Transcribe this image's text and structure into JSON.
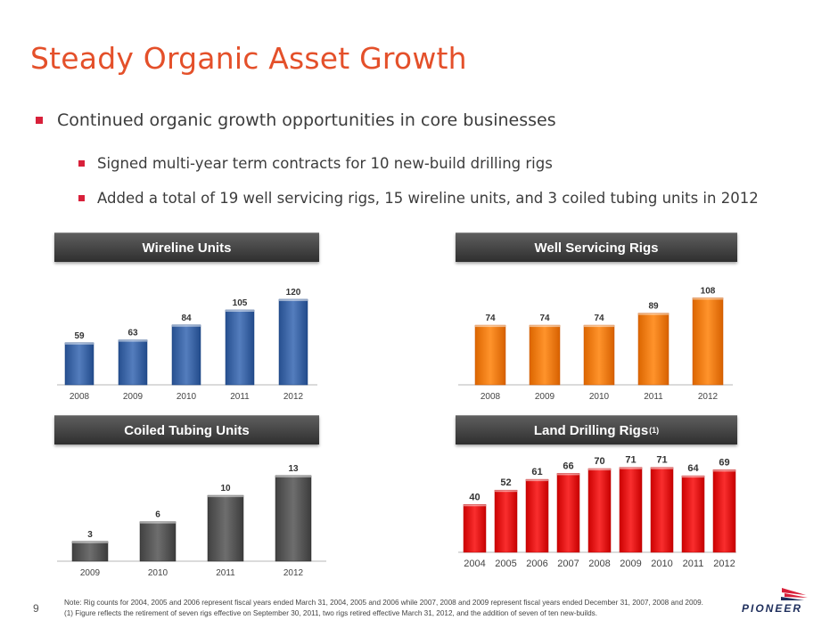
{
  "title": "Steady Organic Asset Growth",
  "bullets": {
    "main": "Continued organic growth opportunities in core businesses",
    "sub": [
      "Signed multi-year term contracts for 10 new-build drilling rigs",
      "Added a total of 19 well servicing rigs, 15 wireline units, and 3 coiled tubing units in 2012"
    ]
  },
  "colors": {
    "title": "#e4502a",
    "wireline": "#3b64a4",
    "well_servicing": "#f07a12",
    "coiled_tubing": "#555555",
    "land_drilling": "#e01515"
  },
  "chart_data": [
    {
      "type": "bar",
      "title": "Wireline Units",
      "categories": [
        "2008",
        "2009",
        "2010",
        "2011",
        "2012"
      ],
      "values": [
        59,
        63,
        84,
        105,
        120
      ],
      "ylim": [
        0,
        130
      ],
      "grid": false
    },
    {
      "type": "bar",
      "title": "Well Servicing Rigs",
      "categories": [
        "2008",
        "2009",
        "2010",
        "2011",
        "2012"
      ],
      "values": [
        74,
        74,
        74,
        89,
        108
      ],
      "ylim": [
        0,
        115
      ],
      "grid": false
    },
    {
      "type": "bar",
      "title": "Coiled Tubing Units",
      "categories": [
        "2009",
        "2010",
        "2011",
        "2012"
      ],
      "values": [
        3,
        6,
        10,
        13
      ],
      "ylim": [
        0,
        13.8
      ],
      "grid": false
    },
    {
      "type": "bar",
      "title": "Land Drilling Rigs",
      "title_sup": "(1)",
      "categories": [
        "2004",
        "2005",
        "2006",
        "2007",
        "2008",
        "2009",
        "2010",
        "2011",
        "2012"
      ],
      "values": [
        40,
        52,
        61,
        66,
        70,
        71,
        71,
        64,
        69
      ],
      "ylim": [
        0,
        76
      ],
      "grid": false
    }
  ],
  "footer": {
    "page_number": "9",
    "note": "Note: Rig counts for 2004, 2005 and 2006 represent fiscal years ended March 31, 2004, 2005 and 2006 while 2007, 2008 and 2009 represent fiscal years ended December 31, 2007, 2008 and 2009.",
    "footnote": "(1)  Figure reflects the retirement of seven rigs effective on September 30, 2011, two rigs retired effective March 31, 2012, and the addition of seven of ten new-builds.",
    "logo": "PIONEER"
  }
}
